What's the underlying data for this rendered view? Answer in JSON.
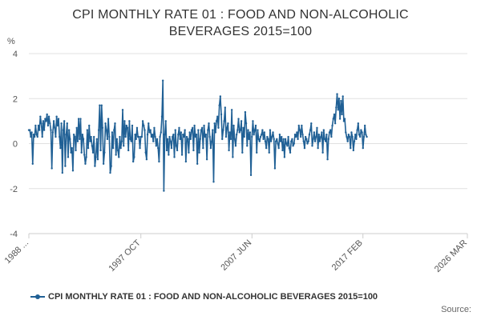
{
  "chart_data": {
    "type": "line",
    "title_lines": [
      "CPI MONTHLY RATE 01 : FOOD AND NON-ALCOHOLIC",
      "BEVERAGES 2015=100"
    ],
    "ylabel": "%",
    "ylim": [
      -4,
      4
    ],
    "yticks": [
      -4,
      -2,
      0,
      2,
      4
    ],
    "xlim": [
      1988.0,
      2026.17
    ],
    "xticks": [
      {
        "label": "1988 ...",
        "x": 1988.0
      },
      {
        "label": "1997 OCT",
        "x": 1997.75
      },
      {
        "label": "2007 JUN",
        "x": 2007.42
      },
      {
        "label": "2017 FEB",
        "x": 2017.08
      },
      {
        "label": "2026 MAR",
        "x": 2026.17
      }
    ],
    "grid": true,
    "legend": "bottom",
    "series": [
      {
        "name": "CPI MONTHLY RATE 01 : FOOD AND NON-ALCOHOLIC BEVERAGES 2015=100",
        "color": "#206095",
        "start_year": 1988.0,
        "step_years": 0.0833333,
        "values": [
          0.6,
          0.6,
          0.3,
          0.5,
          -0.9,
          0.4,
          0.3,
          0.8,
          0.4,
          0.3,
          0.8,
          0.6,
          1.2,
          0.9,
          0.3,
          1.0,
          0.6,
          1.1,
          1.0,
          1.3,
          0.8,
          1.2,
          0.9,
          0.6,
          -1.1,
          0.5,
          1.0,
          0.7,
          0.3,
          1.2,
          0.8,
          1.1,
          0.3,
          -0.2,
          0.9,
          -1.3,
          0.6,
          1.0,
          -1.0,
          0.4,
          0.9,
          -0.6,
          0.6,
          0.2,
          -0.4,
          -0.2,
          -1.2,
          0.4,
          0.3,
          -0.3,
          0.7,
          0.1,
          1.1,
          0.2,
          1.1,
          -0.4,
          0.4,
          0.2,
          -0.5,
          -0.9,
          -0.6,
          0.6,
          -0.2,
          0.8,
          0.1,
          0.3,
          -0.1,
          -0.4,
          0.3,
          -1.0,
          -0.6,
          0.2,
          -0.7,
          0.6,
          1.7,
          -0.3,
          1.7,
          0.7,
          -0.9,
          -0.4,
          0.9,
          0.6,
          0.2,
          1.1,
          0.3,
          -1.3,
          -1.0,
          0.5,
          -0.2,
          0.6,
          0.9,
          -0.5,
          0.2,
          -0.3,
          -0.6,
          0.3,
          -0.2,
          0.1,
          1.5,
          -0.1,
          1.0,
          0.3,
          0.8,
          0.7,
          -0.3,
          1.0,
          0.2,
          0.1,
          0.8,
          -0.8,
          -0.6,
          0.4,
          0.2,
          0.7,
          0.3,
          0.3,
          -0.2,
          0.3,
          0.3,
          1.0,
          0.8,
          0.6,
          -0.4,
          -0.7,
          0.4,
          0.9,
          0.5,
          0.6,
          0.3,
          0.4,
          0.1,
          0.7,
          0.3,
          -0.1,
          0.2,
          -0.2,
          -0.8,
          0.3,
          0.5,
          1.2,
          2.8,
          -2.1,
          0.4,
          1.0,
          -0.3,
          0.2,
          -0.5,
          0.3,
          0.1,
          -0.2,
          0.3,
          0.4,
          -0.6,
          0.6,
          -0.1,
          -0.3,
          0.4,
          0.7,
          0.2,
          0.5,
          -0.5,
          0.4,
          0.3,
          0.6,
          -0.8,
          0.3,
          0.2,
          -0.4,
          0.5,
          0.2,
          0.6,
          0.7,
          -0.3,
          0.8,
          0.3,
          0.4,
          -0.9,
          0.6,
          -0.4,
          0.2,
          0.6,
          0.7,
          -0.2,
          0.8,
          0.3,
          0.4,
          -0.7,
          0.6,
          0.9,
          0.3,
          -0.2,
          0.1,
          0.6,
          -1.7,
          0.9,
          0.5,
          1.0,
          1.2,
          0.7,
          1.7,
          2.1,
          1.3,
          0.2,
          0.6,
          1.0,
          1.6,
          0.3,
          0.7,
          0.9,
          -0.3,
          0.5,
          0.2,
          1.5,
          -0.6,
          0.8,
          0.2,
          -0.1,
          0.4,
          0.6,
          1.1,
          0.5,
          0.6,
          1.0,
          -0.4,
          0.7,
          0.3,
          1.4,
          0.9,
          -0.1,
          0.6,
          0.2,
          0.5,
          -1.4,
          0.3,
          1.0,
          0.4,
          0.6,
          0.8,
          -0.4,
          0.6,
          0.2,
          0.1,
          0.3,
          0.4,
          0.6,
          0.2,
          0.5,
          0.1,
          -0.2,
          0.3,
          0.2,
          -0.4,
          0.6,
          0.1,
          0.3,
          0.5,
          0.2,
          -1.1,
          0.1,
          0.2,
          0.0,
          -0.2,
          0.4,
          0.1,
          0.3,
          -0.3,
          0.2,
          -0.6,
          0.2,
          0.0,
          -0.1,
          0.3,
          -0.2,
          -0.4,
          0.1,
          0.2,
          -0.1,
          0.0,
          0.4,
          0.3,
          0.5,
          0.2,
          0.8,
          0.6,
          0.3,
          0.8,
          0.4,
          0.1,
          -0.2,
          0.3,
          0.2,
          0.0,
          0.1,
          0.4,
          0.6,
          0.9,
          -0.1,
          0.2,
          0.5,
          0.1,
          0.3,
          0.7,
          -0.2,
          0.4,
          0.1,
          0.3,
          0.5,
          -0.4,
          0.6,
          0.2,
          0.1,
          0.4,
          -0.7,
          0.2,
          0.5,
          0.6,
          0.3,
          0.8,
          1.1,
          1.3,
          0.9,
          1.6,
          2.2,
          1.5,
          2.0,
          1.1,
          1.9,
          1.3,
          2.1,
          1.0,
          1.1,
          0.5,
          0.3,
          0.1,
          0.4,
          0.3,
          -0.2,
          0.5,
          0.3,
          -0.3,
          0.1,
          0.4,
          0.2,
          0.6,
          0.9,
          0.4,
          0.3,
          0.6,
          0.5,
          -0.2,
          0.3,
          0.8,
          0.4,
          0.3
        ]
      }
    ]
  },
  "source_label": "Source:"
}
